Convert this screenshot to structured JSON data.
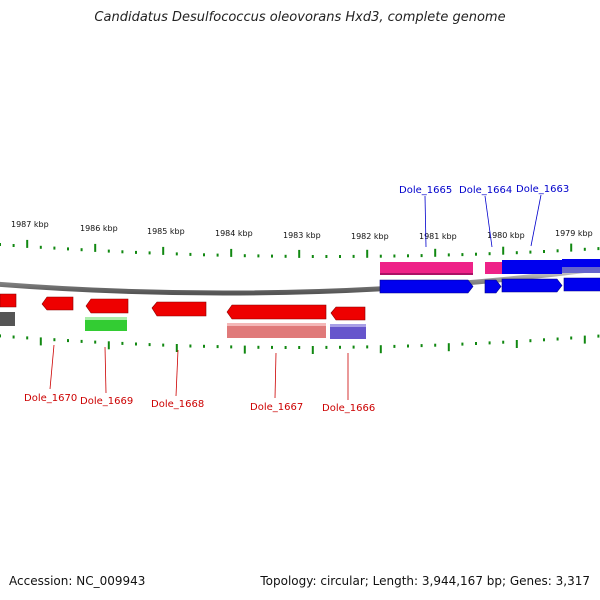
{
  "title": "Candidatus Desulfococcus oleovorans Hxd3, complete genome",
  "accession": "Accession: NC_009943",
  "summary": "Topology: circular; Length: 3,944,167 bp; Genes: 3,317",
  "kbp_labels": [
    "1987 kbp",
    "1986 kbp",
    "1985 kbp",
    "1984 kbp",
    "1983 kbp",
    "1982 kbp",
    "1981 kbp",
    "1980 kbp",
    "1979 kbp"
  ],
  "gene_labels_forward": [
    "Dole_1665",
    "Dole_1664",
    "Dole_1663"
  ],
  "gene_labels_reverse": [
    "Dole_1670",
    "Dole_1669",
    "Dole_1668",
    "Dole_1667",
    "Dole_1666"
  ],
  "colors": {
    "forward_gene": "#0000ee",
    "forward_feature": "#ee2288",
    "reverse_gene": "#ee0000",
    "reverse_feature_pink": "#e07a7a",
    "reverse_feature_green": "#33cc33",
    "reverse_feature_purple": "#6655cc",
    "tick": "#118811",
    "backbone": "#999999"
  }
}
